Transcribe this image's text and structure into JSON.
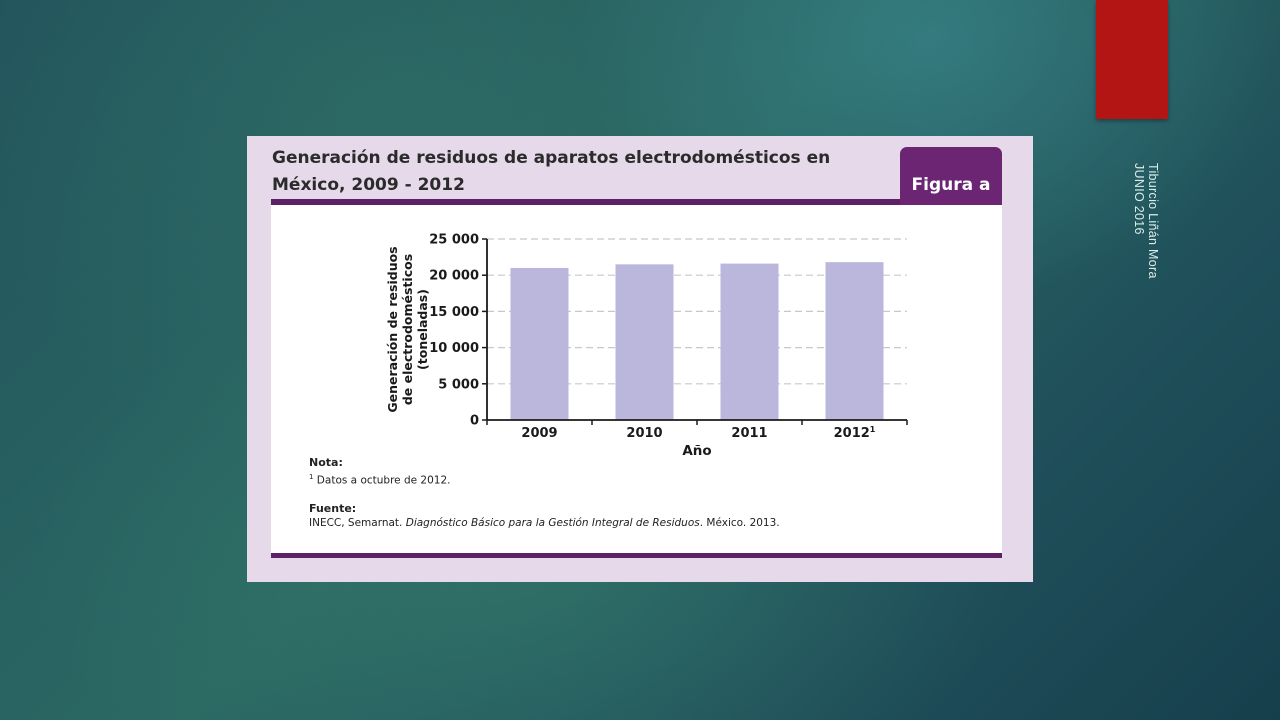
{
  "slide": {
    "author": "Tiburcio Liñán Mora",
    "date": "JUNIO 2016"
  },
  "figure": {
    "title_line1": "Generación de residuos de aparatos electrodomésticos en",
    "title_line2": "México, 2009 - 2012",
    "badge": "Figura a",
    "note_heading": "Nota:",
    "note_sup": "1",
    "note_text": " Datos a octubre de 2012.",
    "source_heading": "Fuente:",
    "source_prefix": "INECC, Semarnat. ",
    "source_italic": "Diagnóstico Básico para la Gestión Integral de Residuos",
    "source_suffix": ". México. 2013."
  },
  "colors": {
    "bar": "#bab6dc",
    "accent": "#5e2066",
    "badge": "#6b2572",
    "red_tab": "#b21513"
  },
  "chart_data": {
    "type": "bar",
    "categories": [
      "2009",
      "2010",
      "2011",
      "2012"
    ],
    "category_superscripts": [
      "",
      "",
      "",
      "1"
    ],
    "values": [
      21000,
      21500,
      21600,
      21800
    ],
    "title": "Generación de residuos de aparatos electrodomésticos en México, 2009 - 2012",
    "xlabel": "Año",
    "ylabel_lines": [
      "Generación de residuos",
      "de electrodomésticos",
      "(toneladas)"
    ],
    "ylim": [
      0,
      25000
    ],
    "yticks": [
      0,
      5000,
      10000,
      15000,
      20000,
      25000
    ],
    "ytick_labels": [
      "0",
      "5 000",
      "10 000",
      "15 000",
      "20 000",
      "25 000"
    ],
    "grid": "horizontal dashed",
    "legend": "none"
  }
}
